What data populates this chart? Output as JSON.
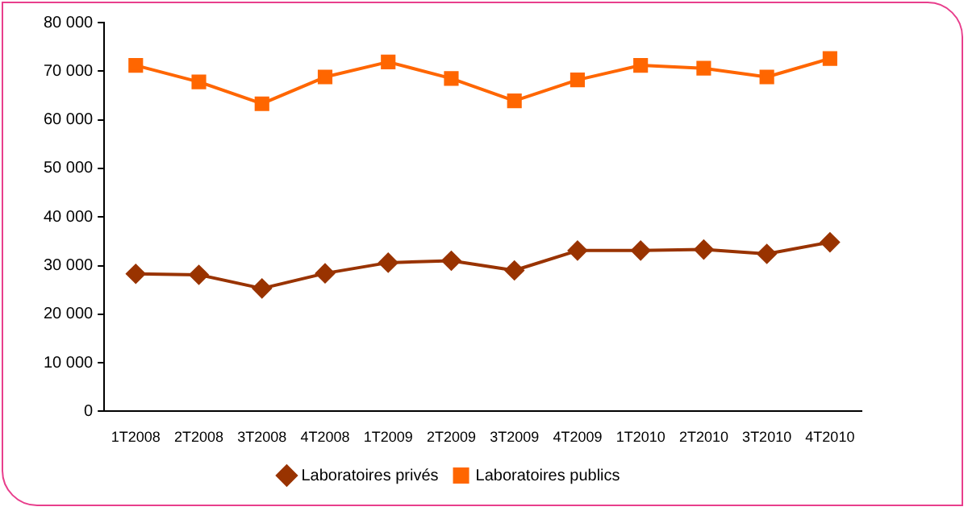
{
  "chart_data": {
    "type": "line",
    "categories": [
      "1T2008",
      "2T2008",
      "3T2008",
      "4T2008",
      "1T2009",
      "2T2009",
      "3T2009",
      "4T2009",
      "1T2010",
      "2T2010",
      "3T2010",
      "4T2010"
    ],
    "series": [
      {
        "name": "Laboratoires privés",
        "color": "#993300",
        "marker": "diamond",
        "values": [
          28300,
          28100,
          25300,
          28400,
          30600,
          31000,
          29000,
          33100,
          33100,
          33300,
          32400,
          34800
        ]
      },
      {
        "name": "Laboratoires publics",
        "color": "#ff6600",
        "marker": "square",
        "values": [
          71200,
          67800,
          63300,
          68800,
          71900,
          68500,
          63900,
          68200,
          71200,
          70600,
          68800,
          72600
        ]
      }
    ],
    "ylim": [
      0,
      80000
    ],
    "yticks": [
      {
        "value": 0,
        "label": "0"
      },
      {
        "value": 10000,
        "label": "10 000"
      },
      {
        "value": 20000,
        "label": "20 000"
      },
      {
        "value": 30000,
        "label": "30 000"
      },
      {
        "value": 40000,
        "label": "40 000"
      },
      {
        "value": 50000,
        "label": "50 000"
      },
      {
        "value": 60000,
        "label": "60 000"
      },
      {
        "value": 70000,
        "label": "70 000"
      },
      {
        "value": 80000,
        "label": "80 000"
      }
    ],
    "grid": false,
    "legend": "bottom",
    "line_style": "solid"
  }
}
